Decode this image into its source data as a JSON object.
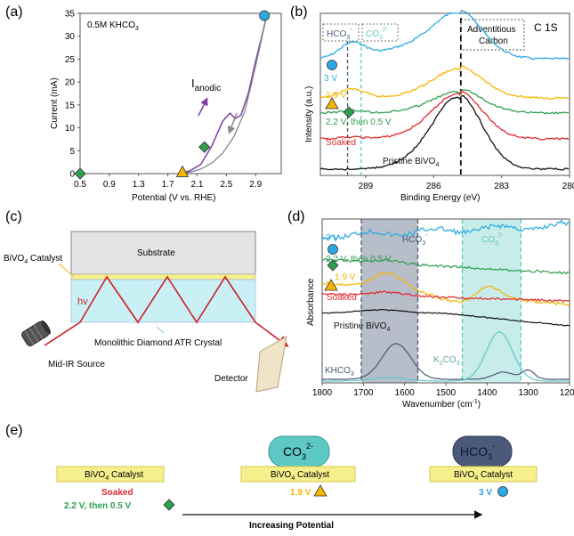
{
  "panel_labels": {
    "a": "(a)",
    "b": "(b)",
    "c": "(c)",
    "d": "(d)",
    "e": "(e)"
  },
  "colors": {
    "cyan_3V": "#29abe2",
    "yellow_1_9V": "#f7b500",
    "green_2_2V": "#2e9e4f",
    "red_soaked": "#e0282e",
    "black_pristine": "#111111",
    "purple_anodic": "#7b3fa6",
    "gray_cathodic": "#888888",
    "hco3_band": "#4a5a78",
    "co3_band": "#5ec8c4",
    "crystal": "#c9f0f5",
    "substrate": "#e4e4e4",
    "catalyst": "#f5ef8c",
    "beam": "#cc1f25"
  },
  "chart_data": [
    {
      "panel": "a",
      "type": "line",
      "annotation": "0.5M KHCO",
      "annotation_sub": "3",
      "xlabel": "Potential (V vs. RHE)",
      "ylabel": "Current (mA)",
      "xlim": [
        0.5,
        3.25
      ],
      "ylim": [
        0,
        35
      ],
      "xticks": [
        "0.5",
        "0.9",
        "1.3",
        "1.7",
        "2.1",
        "2.5",
        "2.9"
      ],
      "yticks": [
        "0",
        "5",
        "10",
        "15",
        "20",
        "25",
        "30",
        "35"
      ],
      "anodic_label": "I",
      "anodic_sub": "anodic",
      "series": [
        {
          "name": "anodic",
          "x": [
            1.85,
            2.0,
            2.15,
            2.3,
            2.45,
            2.55,
            2.62,
            2.7,
            2.8,
            2.9,
            3.0,
            3.05
          ],
          "y": [
            0,
            0.6,
            2.0,
            6.0,
            11.5,
            13.2,
            12.0,
            12.8,
            17.5,
            24.5,
            31.0,
            34.5
          ]
        },
        {
          "name": "cathodic",
          "x": [
            3.05,
            2.95,
            2.85,
            2.75,
            2.6,
            2.45,
            2.3,
            2.15,
            2.0,
            1.85
          ],
          "y": [
            34.5,
            27.0,
            20.0,
            13.5,
            8.0,
            4.5,
            2.3,
            1.0,
            0.3,
            0
          ]
        },
        {
          "name": "markers",
          "points": [
            {
              "x": 0.5,
              "y": 0,
              "shape": "diamond",
              "state": "green_2_2V"
            },
            {
              "x": 1.9,
              "y": 0.3,
              "shape": "triangle",
              "state": "yellow_1_9V"
            },
            {
              "x": 2.2,
              "y": 5.8,
              "shape": "diamond",
              "state": "green_2_2V"
            },
            {
              "x": 3.02,
              "y": 34.5,
              "shape": "circle",
              "state": "cyan_3V"
            }
          ]
        }
      ]
    },
    {
      "panel": "b",
      "type": "line",
      "title": "C 1S",
      "xlabel": "Binding Energy (eV)",
      "ylabel": "Intensity (a.u.)",
      "xlim": [
        291,
        280
      ],
      "xticks": [
        "289",
        "286",
        "283",
        "280"
      ],
      "tick_values": [
        289,
        286,
        283,
        280
      ],
      "box_hco3": "HCO",
      "box_hco3_sup": "3",
      "box_hco3_charge": "-",
      "box_co3": "CO",
      "box_co3_sup": "3",
      "box_co3_charge": "2-",
      "adventitious": [
        "Adventitious",
        "Carbon"
      ],
      "ref_lines": {
        "hco3": 289.8,
        "co3": 289.2,
        "adventitious": 284.8
      },
      "series": [
        {
          "name": "3 V",
          "label": "3 V",
          "color_key": "cyan_3V"
        },
        {
          "name": "1.9 V",
          "label": "1.9 V",
          "color_key": "yellow_1_9V"
        },
        {
          "name": "2.2 V, then 0.5 V",
          "label": "2.2 V, then 0.5 V",
          "color_key": "green_2_2V"
        },
        {
          "name": "Soaked",
          "label": "Soaked",
          "color_key": "red_soaked"
        },
        {
          "name": "Pristine BiVO4",
          "label": "Pristine BiVO",
          "label_sub": "4",
          "color_key": "black_pristine"
        }
      ]
    },
    {
      "panel": "d",
      "type": "line",
      "xlabel": "Wavenumber (cm",
      "xlabel_sup": "-1",
      "xlabel_tail": ")",
      "ylabel": "Absorbance",
      "xlim": [
        1800,
        1200
      ],
      "xticks": [
        "1800",
        "1700",
        "1600",
        "1500",
        "1400",
        "1300",
        "1200"
      ],
      "tick_values": [
        1800,
        1700,
        1600,
        1500,
        1400,
        1300,
        1200
      ],
      "band_hco3": {
        "label": "HCO",
        "sup": "3",
        "charge": "-",
        "range": [
          1705,
          1568
        ]
      },
      "band_co3": {
        "label": "CO",
        "sup": "3",
        "charge": "2-",
        "range": [
          1460,
          1318
        ]
      },
      "ref_khco3": {
        "label": "KHCO",
        "sub": "3"
      },
      "ref_k2co3": {
        "label": "K",
        "sub1": "2",
        "mid": "CO",
        "sub2": "3"
      },
      "series": [
        {
          "name": "3 V",
          "label": "3 V",
          "color_key": "cyan_3V"
        },
        {
          "name": "2.2 V, then 0.5 V",
          "label": "2.2 V, then 0.5 V",
          "color_key": "green_2_2V"
        },
        {
          "name": "1.9 V",
          "label": "1.9 V",
          "color_key": "yellow_1_9V"
        },
        {
          "name": "Soaked",
          "label": "Soaked",
          "color_key": "red_soaked"
        },
        {
          "name": "Pristine BiVO4",
          "label": "Pristine BiVO",
          "label_sub": "4",
          "color_key": "black_pristine"
        }
      ]
    }
  ],
  "panel_c": {
    "substrate": "Substrate",
    "catalyst_label": "BiVO",
    "catalyst_sub": "4",
    "catalyst_tail": " Catalyst",
    "hv": "hv",
    "crystal": "Monolithic Diamond ATR Crystal",
    "source": "Mid-IR Source",
    "detector": "Detector"
  },
  "panel_e": {
    "catalyst_text": "BiVO",
    "catalyst_sub": "4",
    "catalyst_tail": " Catalyst",
    "soaked": "Soaked",
    "state_2_2": "2.2 V, then 0.5 V",
    "state_1_9": "1.9 V",
    "state_3": "3 V",
    "co3": "CO",
    "co3_sub": "3",
    "co3_charge": "2-",
    "hco3": "HCO",
    "hco3_sub": "3",
    "hco3_charge": "-",
    "arrow_label": "Increasing Potential"
  }
}
